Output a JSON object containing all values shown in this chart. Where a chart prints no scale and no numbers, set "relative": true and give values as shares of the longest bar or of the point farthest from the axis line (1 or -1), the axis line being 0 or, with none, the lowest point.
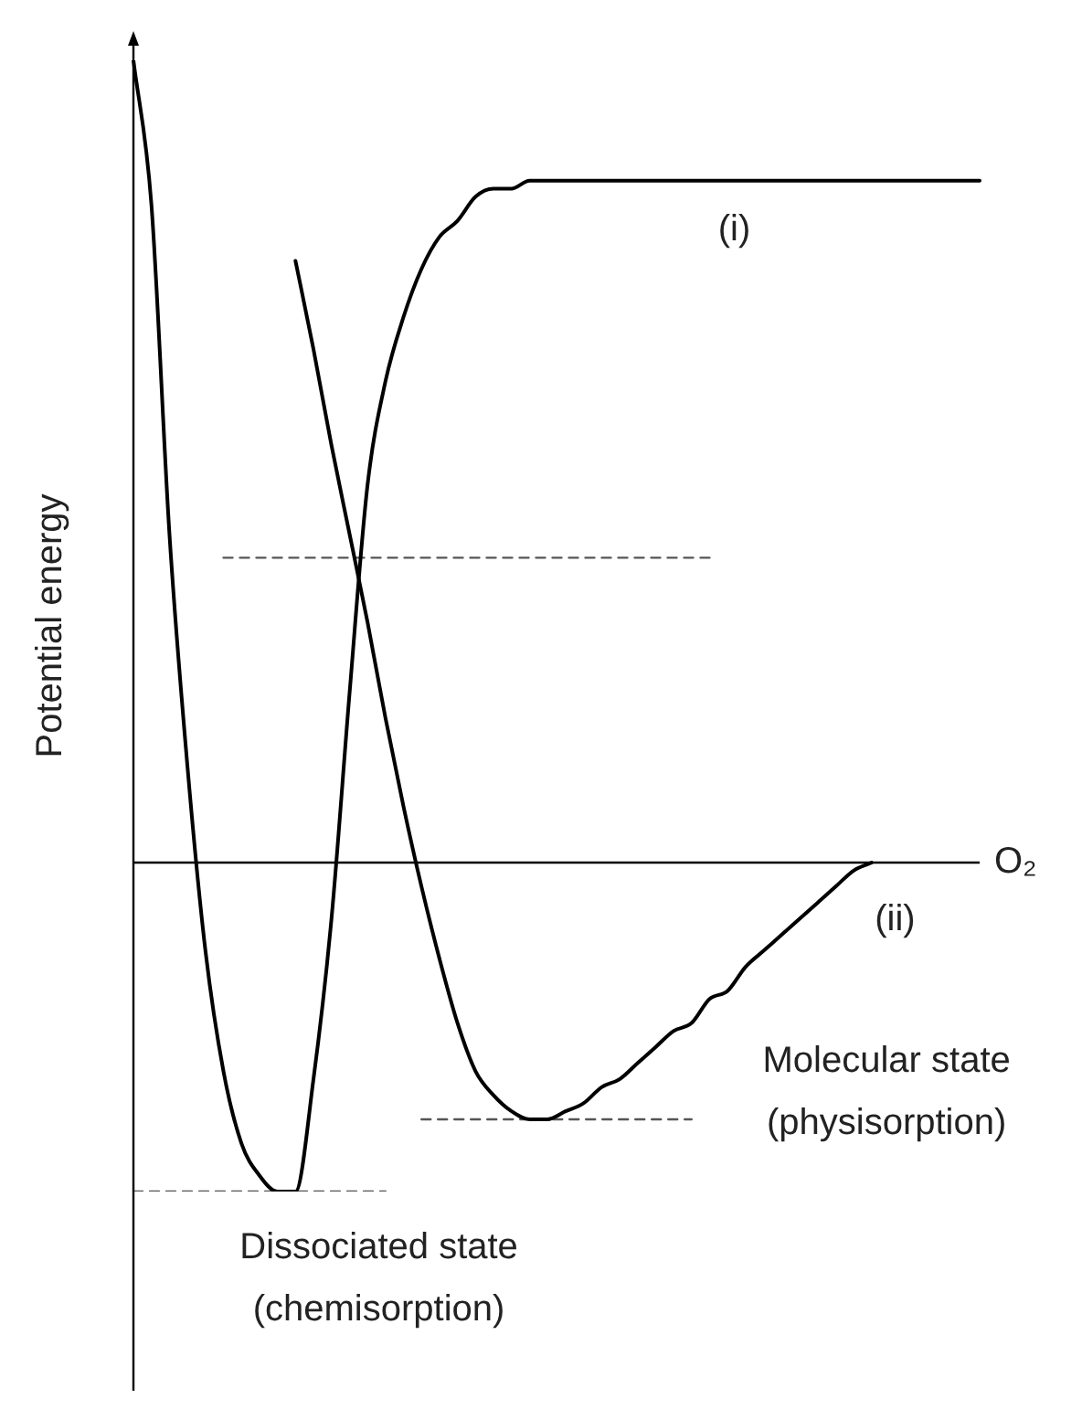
{
  "chart_data": {
    "type": "line",
    "relative": true,
    "xlabel": "O₂",
    "ylabel": "Potential energy",
    "categories": [
      null,
      null,
      null,
      null,
      null,
      null,
      null,
      null,
      null,
      null,
      null,
      null,
      null,
      null,
      null,
      null,
      null,
      null,
      null,
      null,
      null,
      null,
      null,
      null,
      null,
      null,
      null,
      null,
      null,
      null,
      null,
      null,
      null,
      null,
      null,
      null,
      null,
      null,
      null,
      null,
      null,
      null,
      null,
      null,
      null,
      null,
      null,
      null
    ],
    "series": [
      {
        "color": "#000000",
        "line_style": "solid",
        "values": [
          1.0,
          0.82,
          0.41,
          0.12,
          -0.11,
          -0.26,
          -0.35,
          -0.39,
          -0.41,
          -0.41,
          -0.27,
          -0.07,
          0.21,
          0.47,
          0.6,
          0.68,
          0.74,
          0.78,
          0.8,
          0.83,
          0.84,
          0.84,
          0.85,
          0.85,
          0.85,
          0.85,
          0.85,
          0.85,
          0.85,
          0.85,
          0.85,
          0.85,
          0.85,
          0.85,
          0.85,
          0.85,
          0.85,
          0.85,
          0.85,
          0.85,
          0.85,
          0.85,
          0.85,
          0.85,
          0.85,
          0.85,
          0.85,
          0.85
        ]
      },
      {
        "color": "#000000",
        "line_style": "solid",
        "values": [
          null,
          null,
          null,
          null,
          null,
          null,
          null,
          null,
          null,
          0.75,
          0.64,
          0.52,
          0.41,
          0.3,
          0.18,
          0.07,
          -0.03,
          -0.12,
          -0.2,
          -0.26,
          -0.29,
          -0.31,
          -0.32,
          -0.32,
          -0.31,
          -0.3,
          -0.28,
          -0.27,
          -0.25,
          -0.23,
          -0.21,
          -0.2,
          -0.17,
          -0.16,
          -0.13,
          -0.11,
          -0.09,
          -0.07,
          -0.05,
          -0.03,
          -0.01,
          0,
          null,
          null,
          null,
          null,
          null,
          null
        ]
      },
      {
        "color": "#555555",
        "line_style": "dashed",
        "values": [
          null,
          null,
          null,
          null,
          null,
          0.38,
          0.38,
          0.38,
          0.38,
          0.38,
          0.38,
          0.38,
          0.38,
          0.38,
          0.38,
          0.38,
          0.38,
          0.38,
          0.38,
          0.38,
          0.38,
          0.38,
          0.38,
          0.38,
          0.38,
          0.38,
          0.38,
          0.38,
          0.38,
          0.38,
          0.38,
          0.38,
          0.38,
          null,
          null,
          null,
          null,
          null,
          null,
          null,
          null,
          null,
          null,
          null,
          null,
          null,
          null,
          null
        ]
      },
      {
        "color": "#555555",
        "line_style": "dashed",
        "values": [
          null,
          null,
          null,
          null,
          null,
          null,
          null,
          null,
          null,
          null,
          null,
          null,
          null,
          null,
          null,
          null,
          -0.32,
          -0.32,
          -0.32,
          -0.32,
          -0.32,
          -0.32,
          -0.32,
          -0.32,
          -0.32,
          -0.32,
          -0.32,
          -0.32,
          -0.32,
          -0.32,
          -0.32,
          -0.32,
          null,
          null,
          null,
          null,
          null,
          null,
          null,
          null,
          null,
          null,
          null,
          null,
          null,
          null,
          null,
          null
        ]
      },
      {
        "color": "#555555",
        "line_style": "dashed",
        "values": [
          -0.41,
          -0.41,
          -0.41,
          -0.41,
          -0.41,
          -0.41,
          -0.41,
          -0.41,
          -0.41,
          -0.41,
          -0.41,
          -0.41,
          -0.41,
          -0.41,
          -0.41,
          null,
          null,
          null,
          null,
          null,
          null,
          null,
          null,
          null,
          null,
          null,
          null,
          null,
          null,
          null,
          null,
          null,
          null,
          null,
          null,
          null,
          null,
          null,
          null,
          null,
          null,
          null,
          null,
          null,
          null,
          null,
          null,
          null
        ]
      }
    ],
    "annotations": [
      "(i)",
      "(ii)",
      "Molecular state\n(physisorption)",
      "Dissociated state\n(chemisorption)"
    ],
    "marker": "none",
    "grid": false,
    "legend": false,
    "tick_labels": false
  }
}
